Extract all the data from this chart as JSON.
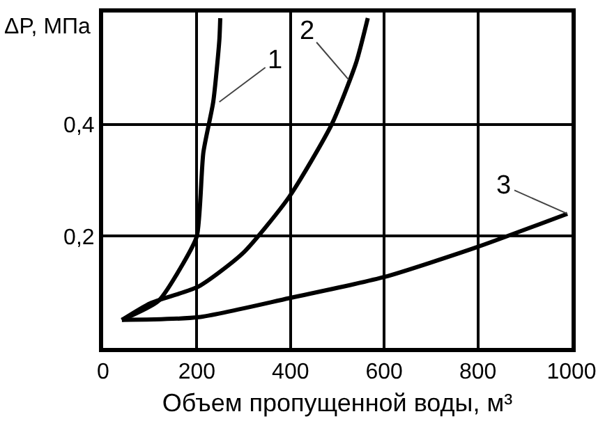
{
  "chart_data": {
    "type": "line",
    "xlabel": "Объем пропущенной воды, м³",
    "ylabel": "ΔP, МПа",
    "series": [
      {
        "color": "#000000",
        "x": [
          40,
          118,
          170,
          200,
          214,
          235,
          248,
          250
        ],
        "values": [
          0.05,
          0.084,
          0.15,
          0.2,
          0.35,
          0.44,
          0.55,
          0.59
        ]
      },
      {
        "color": "#000000",
        "x": [
          40,
          101,
          204,
          299,
          397,
          488,
          540,
          565
        ],
        "values": [
          0.05,
          0.08,
          0.11,
          0.17,
          0.27,
          0.4,
          0.51,
          0.59
        ]
      },
      {
        "color": "#000000",
        "x": [
          40,
          204,
          397,
          601,
          797,
          991
        ],
        "values": [
          0.05,
          0.055,
          0.089,
          0.127,
          0.18,
          0.24
        ]
      }
    ],
    "annotations": [
      {
        "text": "1",
        "x": 248,
        "y": 0.44
      },
      {
        "text": "2",
        "x": 524,
        "y": 0.48
      },
      {
        "text": "3",
        "x": 991,
        "y": 0.24
      }
    ],
    "xlim": [
      0,
      1000
    ],
    "xticks": [
      0,
      200,
      400,
      600,
      800,
      1000
    ],
    "ylim": [
      0,
      0.6
    ],
    "yticks": [
      {
        "value": 0.2,
        "label": "0,2"
      },
      {
        "value": 0.4,
        "label": "0,4"
      }
    ],
    "grid": true,
    "marker": "none",
    "line_style": "solid"
  }
}
